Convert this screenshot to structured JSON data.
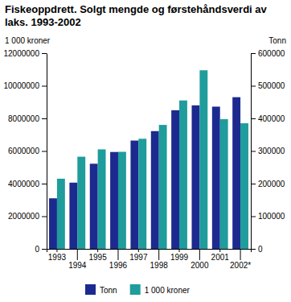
{
  "chart_data": {
    "type": "bar",
    "title": "Fiskeoppdrett. Solgt mengde og førstehåndsverdi av laks. 1993-2002",
    "y_label": "1 000 kroner",
    "y2_label": "Tonn",
    "categories": [
      "1993",
      "1994",
      "1995",
      "1996",
      "1997",
      "1998",
      "1999",
      "2000",
      "2001",
      "2002*"
    ],
    "series": [
      {
        "name": "Tonn",
        "color": "#1c2a8f",
        "axis": "y2",
        "values": [
          155000,
          203000,
          261000,
          297000,
          332000,
          361000,
          425000,
          440000,
          436000,
          465000
        ]
      },
      {
        "name": "1 000 kroner",
        "color": "#1f9c9c",
        "values": [
          4300000,
          5650000,
          6100000,
          5950000,
          6750000,
          7600000,
          9100000,
          10950000,
          7950000,
          7700000
        ]
      }
    ],
    "ylim": [
      0,
      12000000
    ],
    "yticks": [
      0,
      2000000,
      4000000,
      6000000,
      8000000,
      10000000,
      12000000
    ],
    "y2lim": [
      0,
      600000
    ],
    "y2ticks": [
      0,
      100000,
      200000,
      300000,
      400000,
      500000,
      600000
    ],
    "grid": false,
    "legend": "bottom"
  }
}
